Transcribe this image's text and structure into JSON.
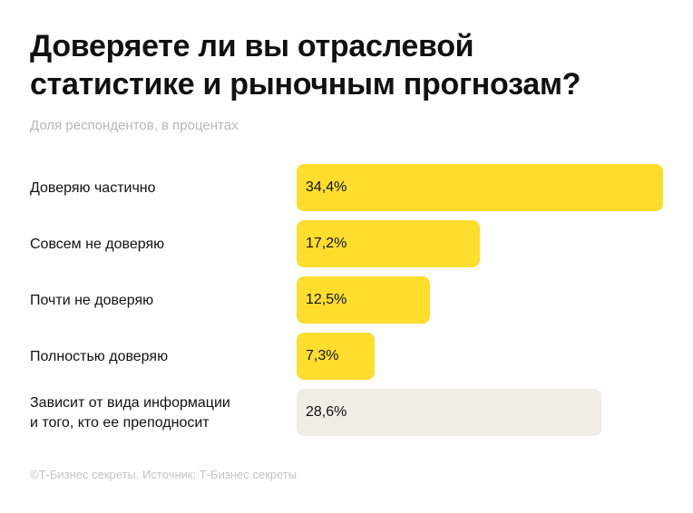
{
  "title_lines": [
    "Доверяете ли вы отраслевой",
    "статистике и рыночным прогнозам?"
  ],
  "subtitle": "Доля респондентов, в процентах",
  "footer": "©Т-Бизнес секреты. Источник: Т-Бизнес секреты",
  "colors": {
    "primary": "#ffdd2d",
    "other": "#f0ede6"
  },
  "chart_data": {
    "type": "bar",
    "orientation": "horizontal",
    "title": "Доверяете ли вы отраслевой статистике и рыночным прогнозам?",
    "subtitle": "Доля респондентов, в процентах",
    "categories": [
      "Доверяю частично",
      "Совсем не доверяю",
      "Почти не доверяю",
      "Полностью доверяю",
      "Зависит от вида информации и того, кто ее преподносит"
    ],
    "label_lines": [
      [
        "Доверяю частично"
      ],
      [
        "Совсем не доверяю"
      ],
      [
        "Почти не доверяю"
      ],
      [
        "Полностью доверяю"
      ],
      [
        "Зависит от вида информации",
        "и того, кто ее преподносит"
      ]
    ],
    "values": [
      34.4,
      17.2,
      12.5,
      7.3,
      28.6
    ],
    "value_labels": [
      "34,4%",
      "17,2%",
      "12,5%",
      "7,3%",
      "28,6%"
    ],
    "bar_colors": [
      "primary",
      "primary",
      "primary",
      "primary",
      "other"
    ],
    "xlim": [
      0,
      34.4
    ],
    "grid": false
  }
}
